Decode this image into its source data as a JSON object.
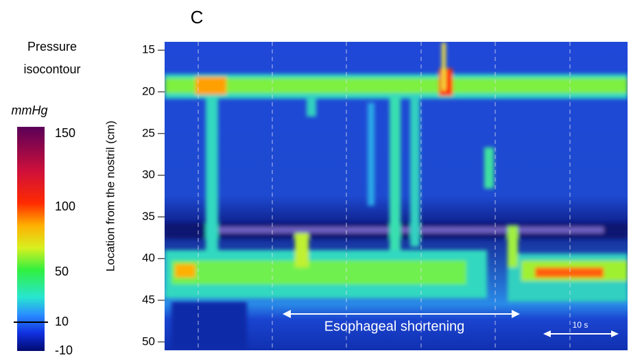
{
  "panel_label": "C",
  "colorbar": {
    "title_lines": [
      "Pressure",
      "isocontour"
    ],
    "unit": "mmHg",
    "ticks": [
      150,
      100,
      50,
      10,
      -10
    ],
    "lim": [
      -10,
      150
    ],
    "isocontour": 10
  },
  "chart_data": {
    "type": "heatmap",
    "ylabel": "Location from the nostril (cm)",
    "ylim": [
      14,
      51
    ],
    "yticks": [
      15,
      20,
      25,
      30,
      35,
      40,
      45,
      50
    ],
    "y_inverted": true,
    "annotations": [
      "Esophageal shortening",
      "10 s"
    ]
  }
}
